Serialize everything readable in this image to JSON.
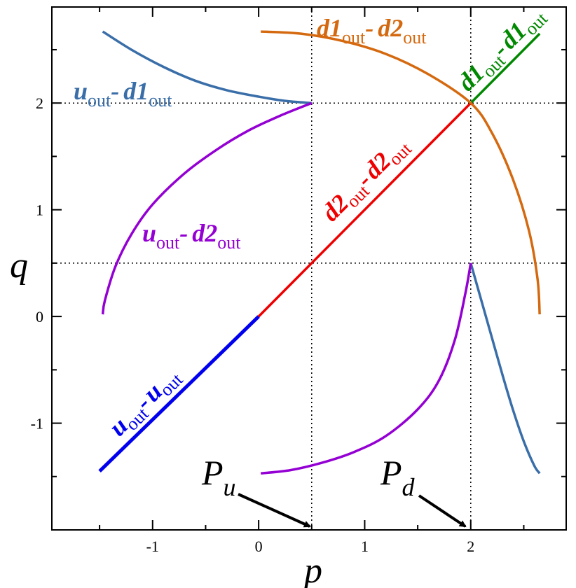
{
  "chart_data": {
    "type": "line",
    "xlabel": "p",
    "ylabel": "q",
    "xlim": [
      -1.95,
      2.9
    ],
    "ylim": [
      -2.0,
      2.9
    ],
    "xticks": [
      -1,
      0,
      1,
      2
    ],
    "yticks": [
      -1,
      0,
      1,
      2
    ],
    "xtick_labels": [
      "-1",
      "0",
      "1",
      "2"
    ],
    "ytick_labels": [
      "-1",
      "0",
      "1",
      "2"
    ],
    "grid": false,
    "reference_lines": {
      "vertical": [
        0.5,
        2
      ],
      "horizontal": [
        0.5,
        2
      ],
      "style": "dotted"
    },
    "series": [
      {
        "id": "uu",
        "color": "#0000ee",
        "points": [
          [
            -1.5,
            -1.45
          ],
          [
            0,
            0
          ]
        ]
      },
      {
        "id": "d2d2",
        "color": "#ee0000",
        "points": [
          [
            0,
            0
          ],
          [
            2,
            2
          ]
        ]
      },
      {
        "id": "d1d1",
        "color": "#008800",
        "points": [
          [
            2,
            2
          ],
          [
            2.65,
            2.65
          ]
        ]
      },
      {
        "id": "ud1-upper",
        "color": "#3a6ea8",
        "points": [
          [
            -1.47,
            2.67
          ],
          [
            -1.2,
            2.5
          ],
          [
            -0.9,
            2.34
          ],
          [
            -0.6,
            2.21
          ],
          [
            -0.3,
            2.12
          ],
          [
            0,
            2.06
          ],
          [
            0.25,
            2.02
          ],
          [
            0.5,
            2.0
          ]
        ]
      },
      {
        "id": "ud1-lower",
        "color": "#3a6ea8",
        "points": [
          [
            2,
            0.5
          ],
          [
            2.1,
            0.15
          ],
          [
            2.2,
            -0.2
          ],
          [
            2.3,
            -0.55
          ],
          [
            2.4,
            -0.88
          ],
          [
            2.5,
            -1.17
          ],
          [
            2.6,
            -1.4
          ],
          [
            2.65,
            -1.47
          ]
        ]
      },
      {
        "id": "ud2-upper",
        "color": "#9400d3",
        "points": [
          [
            0.5,
            2.0
          ],
          [
            0.2,
            1.88
          ],
          [
            -0.1,
            1.74
          ],
          [
            -0.4,
            1.56
          ],
          [
            -0.7,
            1.34
          ],
          [
            -1.0,
            1.05
          ],
          [
            -1.2,
            0.77
          ],
          [
            -1.35,
            0.47
          ],
          [
            -1.45,
            0.15
          ],
          [
            -1.47,
            0.02
          ]
        ]
      },
      {
        "id": "ud2-lower",
        "color": "#9400d3",
        "points": [
          [
            0.02,
            -1.47
          ],
          [
            0.3,
            -1.44
          ],
          [
            0.6,
            -1.37
          ],
          [
            0.9,
            -1.27
          ],
          [
            1.2,
            -1.12
          ],
          [
            1.5,
            -0.87
          ],
          [
            1.7,
            -0.6
          ],
          [
            1.85,
            -0.22
          ],
          [
            1.95,
            0.22
          ],
          [
            2.0,
            0.5
          ]
        ]
      },
      {
        "id": "d1d2",
        "color": "#d4690f",
        "points": [
          [
            0.02,
            2.67
          ],
          [
            0.4,
            2.65
          ],
          [
            0.8,
            2.58
          ],
          [
            1.2,
            2.46
          ],
          [
            1.6,
            2.27
          ],
          [
            2.0,
            2.0
          ],
          [
            2.2,
            1.72
          ],
          [
            2.4,
            1.28
          ],
          [
            2.55,
            0.8
          ],
          [
            2.63,
            0.35
          ],
          [
            2.65,
            0.02
          ]
        ]
      }
    ],
    "labels": [
      {
        "id": "lbl-uu",
        "main1": "u",
        "sub1": "out",
        "sep": "-",
        "main2": "u",
        "sub2": "out",
        "color": "#0000ee"
      },
      {
        "id": "lbl-d2d2",
        "main1": "d2",
        "sub1": "out",
        "sep": "-",
        "main2": "d2",
        "sub2": "out",
        "color": "#ee0000"
      },
      {
        "id": "lbl-d1d1",
        "main1": "d1",
        "sub1": "out",
        "sep": "-",
        "main2": "d1",
        "sub2": "out",
        "color": "#008800"
      },
      {
        "id": "lbl-ud1",
        "main1": "u",
        "sub1": "out",
        "sep": "-",
        "main2": "d1",
        "sub2": "out",
        "color": "#3a6ea8"
      },
      {
        "id": "lbl-ud2",
        "main1": "u",
        "sub1": "out",
        "sep": "-",
        "main2": "d2",
        "sub2": "out",
        "color": "#9400d3"
      },
      {
        "id": "lbl-d1d2",
        "main1": "d1",
        "sub1": "out",
        "sep": "-",
        "main2": "d2",
        "sub2": "out",
        "color": "#d4690f"
      }
    ],
    "annotations": [
      {
        "id": "Pu",
        "main": "P",
        "sub": "u",
        "target": [
          0.5,
          -2.0
        ]
      },
      {
        "id": "Pd",
        "main": "P",
        "sub": "d",
        "target": [
          2.0,
          -2.0
        ]
      }
    ]
  }
}
